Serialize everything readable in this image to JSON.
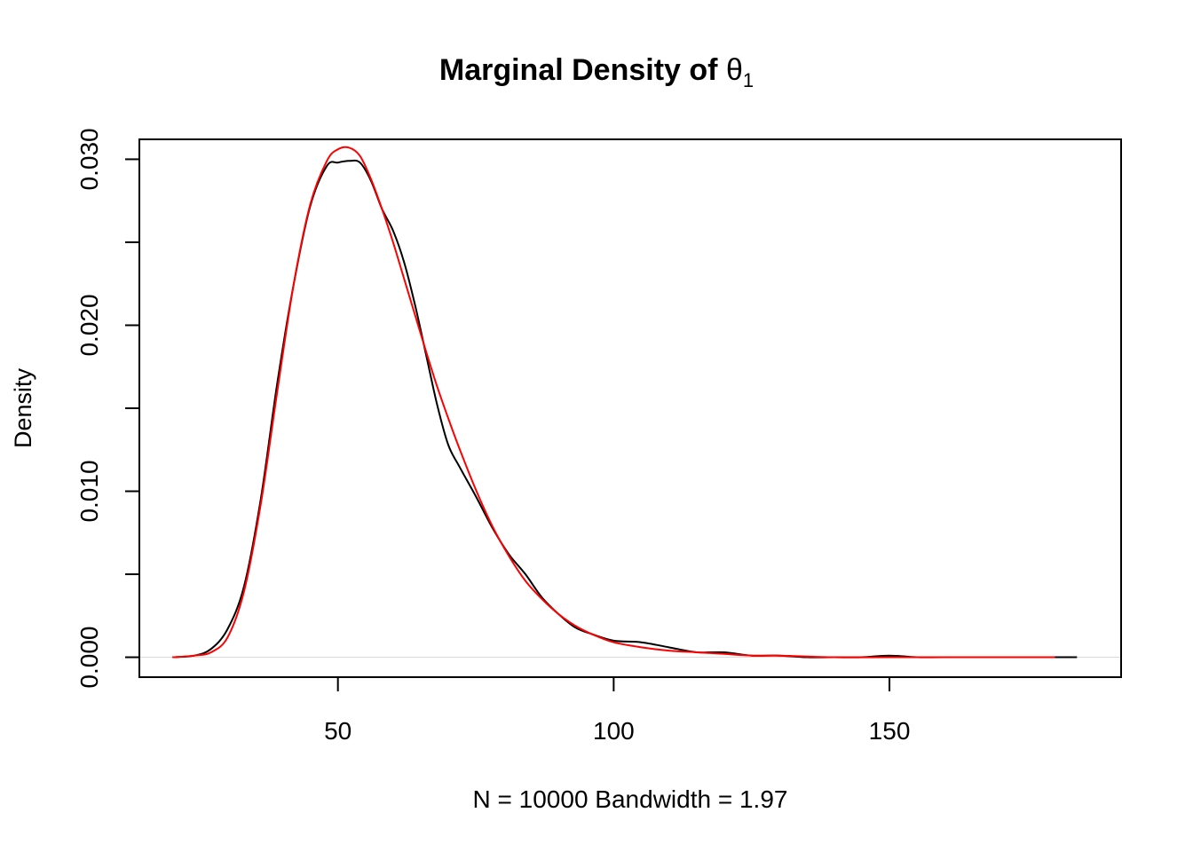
{
  "chart_data": {
    "type": "line",
    "title": {
      "text": "Marginal Density of ",
      "symbol": "θ",
      "subscript": "1"
    },
    "xlabel": "N = 10000   Bandwidth = 1.97",
    "ylabel": "Density",
    "xlim": [
      14,
      192
    ],
    "ylim": [
      -0.0012,
      0.0312
    ],
    "x_ticks": [
      50,
      100,
      150
    ],
    "x_tick_labels": [
      "50",
      "100",
      "150"
    ],
    "y_ticks": [
      0.0,
      0.005,
      0.01,
      0.015,
      0.02,
      0.025,
      0.03
    ],
    "y_tick_labels": [
      "0.000",
      "",
      "0.010",
      "",
      "0.020",
      "",
      "0.030"
    ],
    "grid": false,
    "legend": "none",
    "reference_line": {
      "y": 0,
      "color": "#d9d9d9"
    },
    "series": [
      {
        "color": "#000000",
        "x": [
          20,
          24,
          27,
          30,
          33,
          36,
          39,
          42,
          45,
          48,
          50,
          52,
          54,
          56,
          58,
          60,
          62,
          64,
          66,
          68,
          70,
          72,
          75,
          78,
          81,
          84,
          87,
          90,
          93,
          96,
          100,
          105,
          110,
          115,
          120,
          125,
          130,
          135,
          140,
          145,
          150,
          155,
          160,
          170,
          184
        ],
        "y": [
          0.0,
          0.0001,
          0.0005,
          0.0017,
          0.0043,
          0.0095,
          0.0165,
          0.0225,
          0.0272,
          0.0296,
          0.0298,
          0.0299,
          0.0298,
          0.0287,
          0.027,
          0.0257,
          0.0238,
          0.0212,
          0.0182,
          0.0152,
          0.0128,
          0.0115,
          0.0097,
          0.0078,
          0.0062,
          0.005,
          0.0036,
          0.0026,
          0.0018,
          0.0014,
          0.001,
          0.0009,
          0.0006,
          0.0003,
          0.0003,
          0.0001,
          0.0001,
          0.0,
          0.0,
          0.0,
          0.0001,
          0.0,
          0.0,
          0.0,
          0.0
        ]
      },
      {
        "color": "#ff0000",
        "x": [
          20,
          24,
          27,
          30,
          33,
          36,
          39,
          42,
          45,
          48,
          50,
          52,
          54,
          56,
          58,
          60,
          62,
          64,
          66,
          68,
          70,
          72,
          75,
          78,
          81,
          84,
          87,
          90,
          93,
          96,
          100,
          105,
          110,
          115,
          120,
          125,
          130,
          140,
          150,
          160,
          170,
          180
        ],
        "y": [
          0.0,
          0.0001,
          0.0003,
          0.0012,
          0.004,
          0.0092,
          0.016,
          0.0225,
          0.0273,
          0.0299,
          0.0306,
          0.0307,
          0.0302,
          0.0288,
          0.027,
          0.025,
          0.0228,
          0.0206,
          0.0184,
          0.0163,
          0.0144,
          0.0126,
          0.0101,
          0.0079,
          0.0061,
          0.0046,
          0.0035,
          0.0026,
          0.0019,
          0.0014,
          0.0009,
          0.0006,
          0.0004,
          0.0003,
          0.0002,
          0.0001,
          0.0001,
          0.0,
          0.0,
          0.0,
          0.0,
          0.0
        ]
      }
    ]
  }
}
